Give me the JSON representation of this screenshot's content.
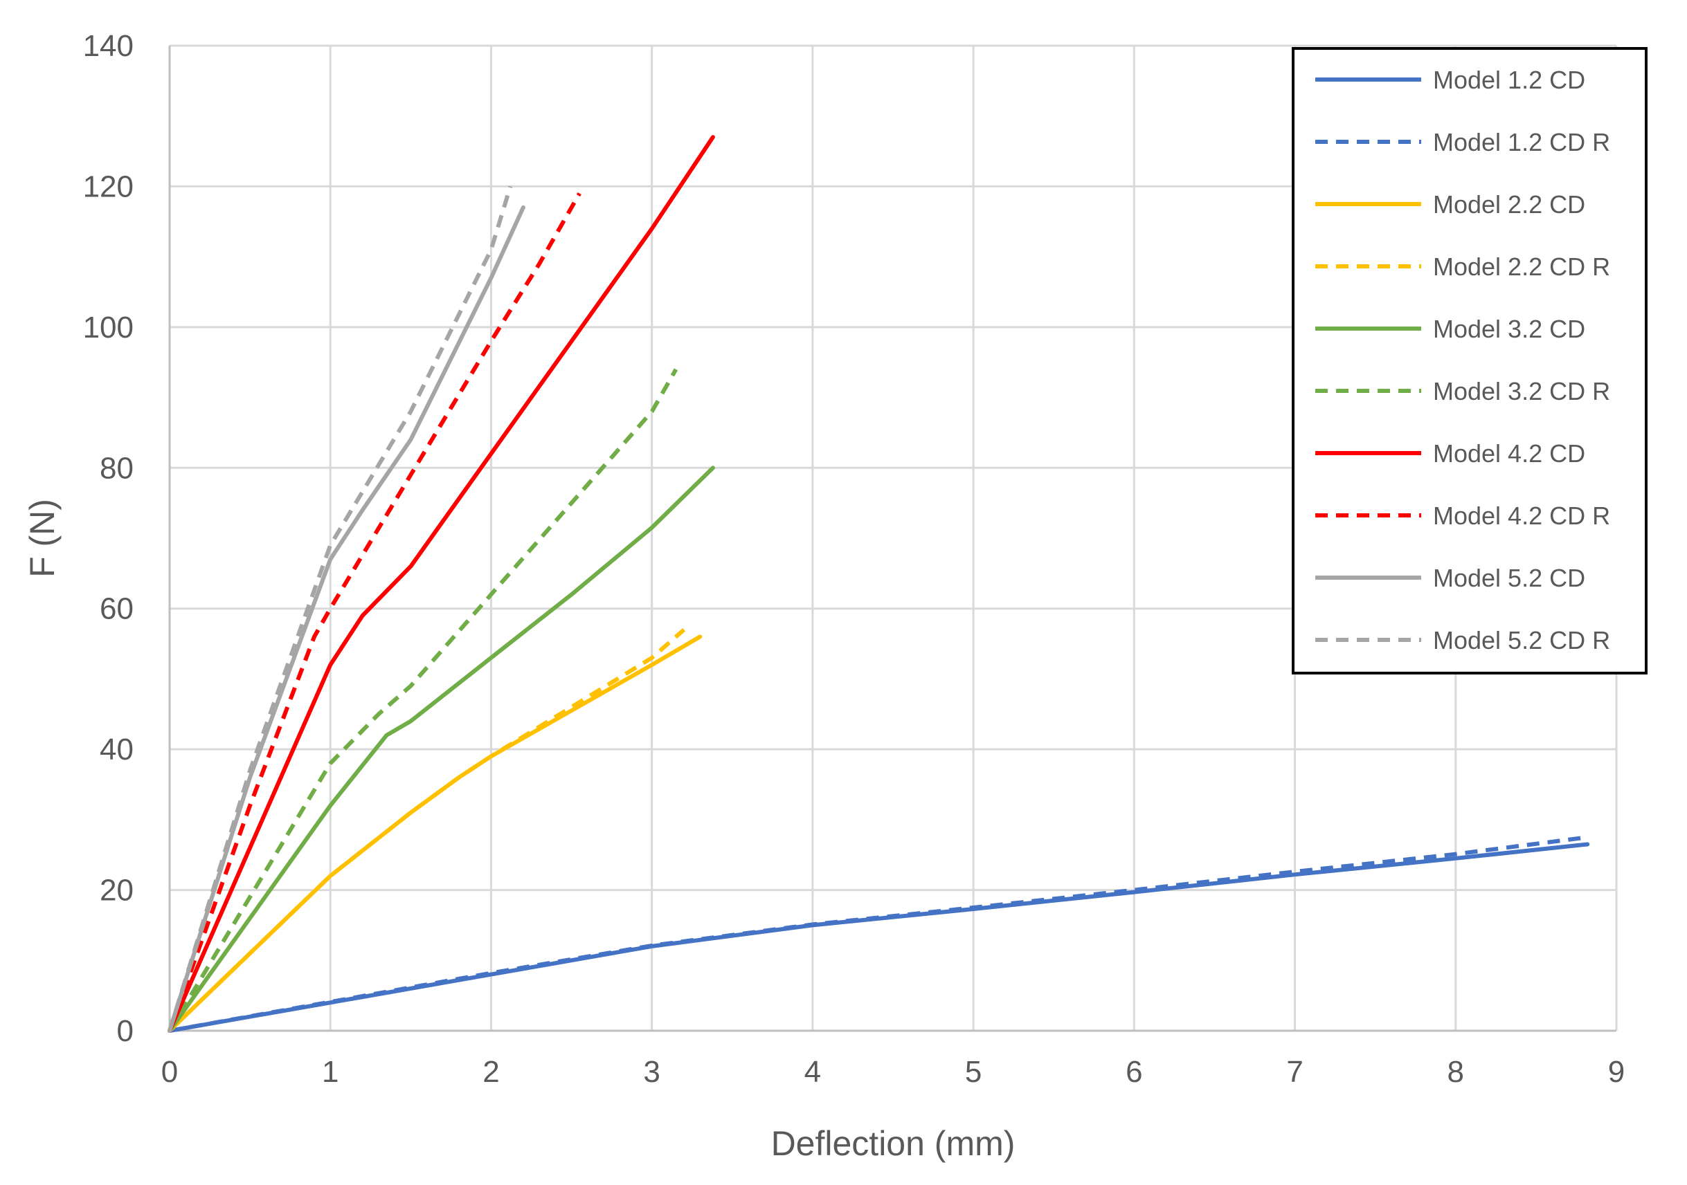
{
  "chart_data": {
    "type": "line",
    "title": "",
    "xlabel": "Deflection (mm)",
    "ylabel": "F (N)",
    "xlim": [
      0,
      9
    ],
    "ylim": [
      0,
      140
    ],
    "xticks": [
      0,
      1,
      2,
      3,
      4,
      5,
      6,
      7,
      8,
      9
    ],
    "yticks": [
      0,
      20,
      40,
      60,
      80,
      100,
      120,
      140
    ],
    "grid": true,
    "legend_position": "top-right",
    "series": [
      {
        "name": "Model 1.2 CD",
        "color": "#4472C4",
        "dash": "solid",
        "x": [
          0,
          1,
          2,
          3,
          4,
          5,
          6,
          7,
          8,
          8.82
        ],
        "y": [
          0,
          4,
          8,
          12,
          15,
          17.3,
          19.7,
          22.2,
          24.5,
          26.5
        ]
      },
      {
        "name": "Model 1.2 CD R",
        "color": "#4472C4",
        "dash": "dashed",
        "x": [
          0,
          1,
          2,
          3,
          4,
          5,
          6,
          7,
          8,
          8.82
        ],
        "y": [
          0,
          4.1,
          8.2,
          12.1,
          15.1,
          17.5,
          20,
          22.6,
          25.1,
          27.5
        ]
      },
      {
        "name": "Model 2.2 CD",
        "color": "#FFC000",
        "dash": "solid",
        "x": [
          0,
          0.5,
          1,
          1.5,
          1.8,
          2,
          2.5,
          3,
          3.3
        ],
        "y": [
          0,
          11,
          22,
          31,
          36,
          39,
          45.5,
          52,
          56
        ]
      },
      {
        "name": "Model 2.2 CD R",
        "color": "#FFC000",
        "dash": "dashed",
        "x": [
          0,
          0.5,
          1,
          1.5,
          1.8,
          2,
          2.5,
          3,
          3.2
        ],
        "y": [
          0,
          11,
          22,
          31,
          36,
          39,
          46,
          53,
          57
        ]
      },
      {
        "name": "Model 3.2 CD",
        "color": "#70AD47",
        "dash": "solid",
        "x": [
          0,
          0.5,
          1,
          1.35,
          1.5,
          2,
          2.5,
          3,
          3.38
        ],
        "y": [
          0,
          16,
          32,
          42,
          44,
          53,
          62,
          71.5,
          80
        ]
      },
      {
        "name": "Model 3.2 CD R",
        "color": "#70AD47",
        "dash": "dashed",
        "x": [
          0,
          0.5,
          1,
          1.3,
          1.5,
          2,
          2.5,
          3,
          3.15
        ],
        "y": [
          0,
          19,
          38,
          45,
          49,
          62,
          75,
          88,
          94
        ]
      },
      {
        "name": "Model 4.2 CD",
        "color": "#FF0000",
        "dash": "solid",
        "x": [
          0,
          0.5,
          1,
          1.2,
          1.5,
          2,
          2.5,
          3,
          3.38
        ],
        "y": [
          0,
          26,
          52,
          59,
          66,
          82,
          98,
          114,
          127
        ]
      },
      {
        "name": "Model 4.2 CD R",
        "color": "#FF0000",
        "dash": "dashed",
        "x": [
          0,
          0.5,
          0.9,
          1,
          1.5,
          2,
          2.3,
          2.55
        ],
        "y": [
          0,
          32,
          56,
          60,
          79,
          98,
          109,
          119
        ]
      },
      {
        "name": "Model 5.2 CD",
        "color": "#A5A5A5",
        "dash": "solid",
        "x": [
          0,
          0.5,
          1,
          1.2,
          1.5,
          2,
          2.2
        ],
        "y": [
          0,
          36,
          67,
          74,
          84,
          107,
          117
        ]
      },
      {
        "name": "Model 5.2 CD R",
        "color": "#A5A5A5",
        "dash": "dashed",
        "x": [
          0,
          0.5,
          1,
          1.5,
          2,
          2.12
        ],
        "y": [
          0,
          37,
          69,
          88,
          111,
          120
        ]
      }
    ]
  }
}
